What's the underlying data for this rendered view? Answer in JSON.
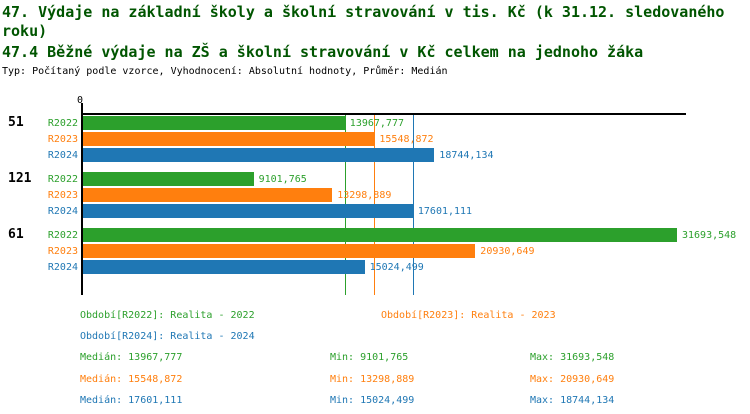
{
  "title": {
    "line1": "47. Výdaje na základní školy a školní stravování v tis. Kč (k 31.12. sledovaného roku)",
    "line2": "47.4 Běžné výdaje na ZŠ a školní stravování v Kč celkem na jednoho žáka",
    "meta": "Typ: Počítaný podle vzorce, Vyhodnocení: Absolutní hodnoty, Průměr: Medián"
  },
  "colors": {
    "R2022": "#2ca02c",
    "R2023": "#ff7f0e",
    "R2024": "#1f77b4",
    "title": "#005500",
    "axis": "#000000"
  },
  "chart_data": {
    "type": "bar",
    "orientation": "horizontal",
    "x_origin_label": "0",
    "xlim": [
      0,
      32250
    ],
    "grid": "median-lines-only",
    "categories": [
      "51",
      "121",
      "61"
    ],
    "series_names": [
      "R2022",
      "R2023",
      "R2024"
    ],
    "groups": [
      {
        "label": "51",
        "bars": [
          {
            "series": "R2022",
            "value": 13967.777,
            "display": "13967,777"
          },
          {
            "series": "R2023",
            "value": 15548.872,
            "display": "15548,872"
          },
          {
            "series": "R2024",
            "value": 18744.134,
            "display": "18744,134"
          }
        ]
      },
      {
        "label": "121",
        "bars": [
          {
            "series": "R2022",
            "value": 9101.765,
            "display": "9101,765"
          },
          {
            "series": "R2023",
            "value": 13298.889,
            "display": "13298,889"
          },
          {
            "series": "R2024",
            "value": 17601.111,
            "display": "17601,111"
          }
        ]
      },
      {
        "label": "61",
        "bars": [
          {
            "series": "R2022",
            "value": 31693.548,
            "display": "31693,548"
          },
          {
            "series": "R2023",
            "value": 20930.649,
            "display": "20930,649"
          },
          {
            "series": "R2024",
            "value": 15024.499,
            "display": "15024,499"
          }
        ]
      }
    ],
    "median_lines": [
      {
        "series": "R2022",
        "value": 13967.777
      },
      {
        "series": "R2023",
        "value": 15548.872
      },
      {
        "series": "R2024",
        "value": 17601.111
      }
    ]
  },
  "legend": {
    "items": [
      {
        "series": "R2022",
        "text": "Období[R2022]: Realita - 2022"
      },
      {
        "series": "R2023",
        "text": "Období[R2023]: Realita - 2023"
      },
      {
        "series": "R2024",
        "text": "Období[R2024]: Realita - 2024"
      }
    ]
  },
  "stats": {
    "rows": [
      {
        "series": "R2022",
        "median": "Medián: 13967,777",
        "min": "Min: 9101,765",
        "max": "Max: 31693,548"
      },
      {
        "series": "R2023",
        "median": "Medián: 15548,872",
        "min": "Min: 13298,889",
        "max": "Max: 20930,649"
      },
      {
        "series": "R2024",
        "median": "Medián: 17601,111",
        "min": "Min: 15024,499",
        "max": "Max: 18744,134"
      }
    ]
  }
}
